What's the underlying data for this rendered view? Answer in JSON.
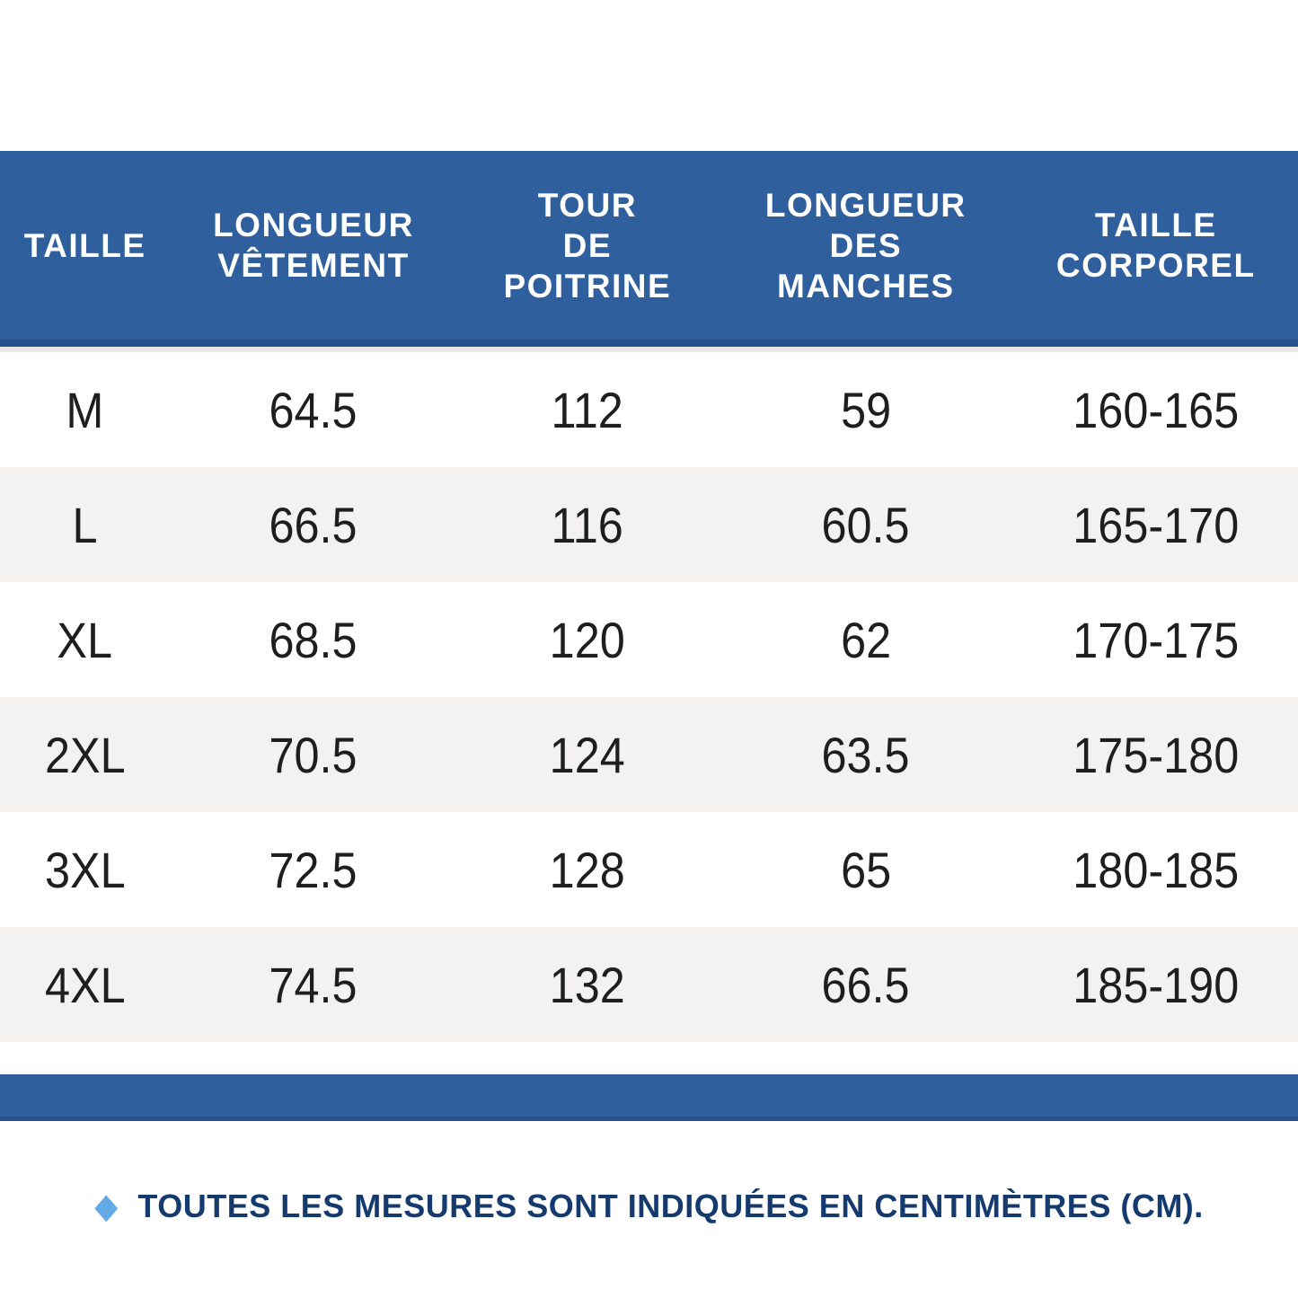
{
  "colors": {
    "header_blue": "#305f9e",
    "header_blue_dark": "#27518c",
    "row_alt_bg": "#f4f2f0",
    "data_text": "#1e1e1e",
    "note_text": "#143a6e",
    "note_bullet": "#63a9e5",
    "header_text": "#ffffff"
  },
  "size_chart": {
    "columns": [
      {
        "id": "taille",
        "lines": [
          "TAILLE"
        ]
      },
      {
        "id": "longueur-vetement",
        "lines": [
          "LONGUEUR",
          "VÊTEMENT"
        ]
      },
      {
        "id": "tour-de-poitrine",
        "lines": [
          "TOUR",
          "DE",
          "POITRINE"
        ]
      },
      {
        "id": "longueur-des-manches",
        "lines": [
          "LONGUEUR",
          "DES",
          "MANCHES"
        ]
      },
      {
        "id": "taille-corporel",
        "lines": [
          "TAILLE",
          "CORPOREL"
        ]
      }
    ],
    "rows": [
      {
        "size": "M",
        "values": [
          "64.5",
          "112",
          "59",
          "160-165"
        ]
      },
      {
        "size": "L",
        "values": [
          "66.5",
          "116",
          "60.5",
          "165-170"
        ]
      },
      {
        "size": "XL",
        "values": [
          "68.5",
          "120",
          "62",
          "170-175"
        ]
      },
      {
        "size": "2XL",
        "values": [
          "70.5",
          "124",
          "63.5",
          "175-180"
        ]
      },
      {
        "size": "3XL",
        "values": [
          "72.5",
          "128",
          "65",
          "180-185"
        ]
      },
      {
        "size": "4XL",
        "values": [
          "74.5",
          "132",
          "66.5",
          "185-190"
        ]
      }
    ]
  },
  "note": {
    "bullet_glyph": "◆",
    "text": "TOUTES LES MESURES SONT INDIQUÉES EN CENTIMÈTRES (CM)."
  },
  "chart_data": {
    "type": "table",
    "columns": [
      "TAILLE",
      "LONGUEUR VÊTEMENT",
      "TOUR DE POITRINE",
      "LONGUEUR DES MANCHES",
      "TAILLE CORPOREL"
    ],
    "rows": [
      [
        "M",
        64.5,
        112,
        59,
        "160-165"
      ],
      [
        "L",
        66.5,
        116,
        60.5,
        "165-170"
      ],
      [
        "XL",
        68.5,
        120,
        62,
        "170-175"
      ],
      [
        "2XL",
        70.5,
        124,
        63.5,
        "175-180"
      ],
      [
        "3XL",
        72.5,
        128,
        65,
        "180-185"
      ],
      [
        "4XL",
        74.5,
        132,
        66.5,
        "185-190"
      ]
    ],
    "units": "cm",
    "footnote": "TOUTES LES MESURES SONT INDIQUÉES EN CENTIMÈTRES (CM)."
  }
}
